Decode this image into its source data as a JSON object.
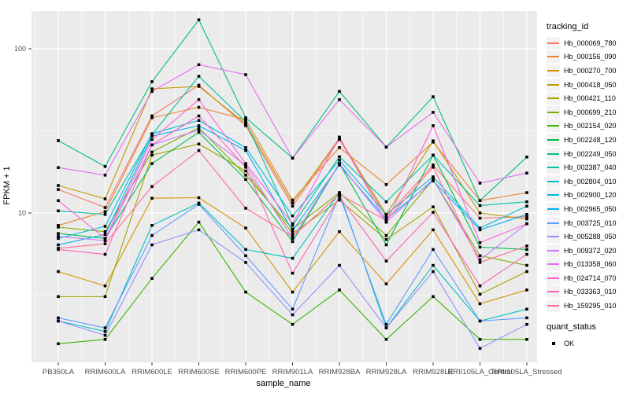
{
  "chart_data": {
    "type": "line",
    "title": "",
    "xlabel": "sample_name",
    "ylabel": "FPKM + 1",
    "y_scale": "log10",
    "y_ticks": [
      100,
      10
    ],
    "y_minor_ticks": [
      31.623,
      3.1623
    ],
    "ylim": [
      1.23,
      170
    ],
    "grid": true,
    "legend_position": "right",
    "marker": {
      "shape": "square",
      "color": "#000000"
    },
    "categories": [
      "PB350LA",
      "RRIM600LA",
      "RRIM600LE",
      "RRIM600SE",
      "RRIM600PE",
      "RRIM901LA",
      "RRIM928BA",
      "RRIM928LA",
      "RRIM928LE",
      "RRII105LA_Control",
      "RRII105LA_Stressed"
    ],
    "series": [
      {
        "name": "Hb_000069_780",
        "color": "#F8766D",
        "values": [
          13.9,
          10.8,
          39,
          60,
          34,
          11,
          28,
          9.5,
          19.6,
          9.3,
          9.5
        ]
      },
      {
        "name": "Hb_000156_090",
        "color": "#EA8331",
        "values": [
          8.4,
          10.2,
          38,
          44,
          37,
          12,
          25,
          14.9,
          27,
          11.9,
          13.3
        ]
      },
      {
        "name": "Hb_000270_700",
        "color": "#D89000",
        "values": [
          4.4,
          3.6,
          12.3,
          12.4,
          8.1,
          3.3,
          7.7,
          3.7,
          7.9,
          2.8,
          3.4
        ]
      },
      {
        "name": "Hb_000418_050",
        "color": "#C09B00",
        "values": [
          14.7,
          12.2,
          57,
          59,
          35,
          11.5,
          28.5,
          9.8,
          27.5,
          10.0,
          9.2
        ]
      },
      {
        "name": "Hb_000421_110",
        "color": "#A3A500",
        "values": [
          3.1,
          3.1,
          22.5,
          26.3,
          18,
          7.5,
          12,
          6.9,
          10.9,
          3.2,
          4.4
        ]
      },
      {
        "name": "Hb_000699_210",
        "color": "#7CAE00",
        "values": [
          8.2,
          7.7,
          23.5,
          33,
          17,
          8.0,
          13.3,
          7.3,
          16,
          5.5,
          4.8
        ]
      },
      {
        "name": "Hb_002154_020",
        "color": "#39B600",
        "values": [
          1.6,
          1.7,
          4.0,
          8.8,
          3.3,
          2.1,
          3.4,
          1.7,
          3.1,
          1.7,
          1.7
        ]
      },
      {
        "name": "Hb_002248_120",
        "color": "#00BB4E",
        "values": [
          7.5,
          7.0,
          20,
          31,
          16,
          6.7,
          20,
          6.4,
          22.5,
          6.2,
          6.0
        ]
      },
      {
        "name": "Hb_002249_050",
        "color": "#00BF7D",
        "values": [
          27.6,
          19.2,
          63,
          150,
          38,
          21.6,
          55,
          25.2,
          51,
          11.9,
          21.9
        ]
      },
      {
        "name": "Hb_002387_040",
        "color": "#00C1A3",
        "values": [
          10.3,
          9.8,
          30,
          68,
          36,
          8.4,
          22,
          11.7,
          22.5,
          11.1,
          11.7
        ]
      },
      {
        "name": "Hb_002804_010",
        "color": "#00BFC4",
        "values": [
          2.2,
          1.9,
          8.4,
          11.5,
          6.0,
          5.3,
          13.3,
          2.0,
          4.8,
          2.2,
          2.6
        ]
      },
      {
        "name": "Hb_002900_120",
        "color": "#00BBDA",
        "values": [
          7.0,
          8.3,
          30.4,
          36.6,
          25,
          9.6,
          21,
          9.8,
          16.6,
          8.1,
          11.0
        ]
      },
      {
        "name": "Hb_002965_050",
        "color": "#00B0F6",
        "values": [
          6.4,
          7.4,
          29.4,
          34,
          24,
          7.8,
          19.6,
          9.2,
          15.7,
          7.9,
          9.8
        ]
      },
      {
        "name": "Hb_003725_010",
        "color": "#619CFF",
        "values": [
          2.3,
          2.0,
          7.3,
          11.3,
          5.5,
          2.6,
          12.9,
          2.1,
          6.0,
          2.2,
          2.3
        ]
      },
      {
        "name": "Hb_005288_050",
        "color": "#9590FF",
        "values": [
          2.2,
          1.8,
          6.4,
          7.9,
          5.0,
          2.4,
          4.8,
          2.0,
          4.4,
          1.5,
          2.1
        ]
      },
      {
        "name": "Hb_009372_020",
        "color": "#C77CFF",
        "values": [
          7.2,
          6.8,
          26,
          32,
          19.5,
          7.0,
          20,
          8.8,
          16,
          5.2,
          8.6
        ]
      },
      {
        "name": "Hb_013358_060",
        "color": "#E76BF3",
        "values": [
          18.9,
          17,
          55,
          80,
          69.5,
          21.6,
          49,
          25.2,
          41,
          15.2,
          17.5
        ]
      },
      {
        "name": "Hb_024714_070",
        "color": "#FA62DB",
        "values": [
          11.9,
          7.0,
          28,
          49,
          20,
          8.6,
          29,
          8.8,
          34,
          6.6,
          8.6
        ]
      },
      {
        "name": "Hb_033363_010",
        "color": "#FF62BC",
        "values": [
          6.0,
          5.6,
          26,
          39,
          19,
          4.3,
          12.5,
          5.1,
          10.1,
          3.6,
          5.6
        ]
      },
      {
        "name": "Hb_159295_010",
        "color": "#FF6A98",
        "values": [
          6.1,
          6.5,
          14.5,
          24,
          10.7,
          7.2,
          13,
          9.0,
          19,
          5.0,
          6.3
        ]
      }
    ]
  },
  "legend": {
    "tracking_title": "tracking_id",
    "quant_title": "quant_status",
    "quant_items": [
      "OK"
    ]
  },
  "style": {
    "panel_bg": "#EBEBEB",
    "grid_color": "#FFFFFF",
    "axis_text_color": "#4D4D4D",
    "tick_color": "#333333",
    "legend_key_bg": "#F2F2F2",
    "marker_color": "#000000"
  }
}
